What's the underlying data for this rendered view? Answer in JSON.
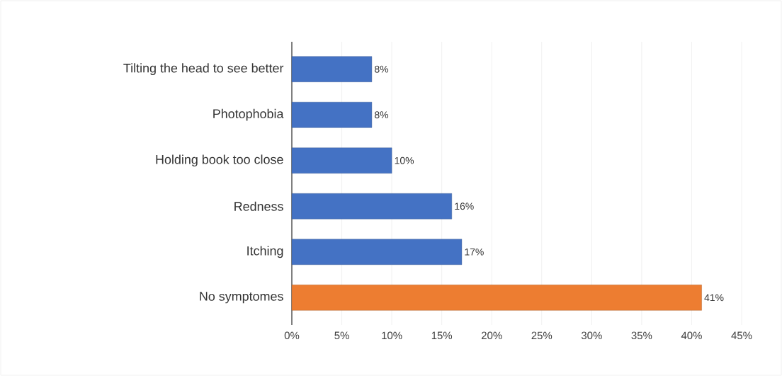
{
  "chart_data": {
    "type": "bar",
    "orientation": "horizontal",
    "categories": [
      "Tilting the head to see better",
      "Photophobia",
      "Holding book too close",
      "Redness",
      "Itching",
      "No symptomes"
    ],
    "values": [
      8,
      8,
      10,
      16,
      17,
      41
    ],
    "colors": [
      "#4472c4",
      "#4472c4",
      "#4472c4",
      "#4472c4",
      "#4472c4",
      "#ed7d31"
    ],
    "value_labels": [
      "8%",
      "8%",
      "10%",
      "16%",
      "17%",
      "41%"
    ],
    "xlim": [
      0,
      45
    ],
    "xticks": [
      {
        "value": 0,
        "label": "0%"
      },
      {
        "value": 5,
        "label": "5%"
      },
      {
        "value": 10,
        "label": "10%"
      },
      {
        "value": 15,
        "label": "15%"
      },
      {
        "value": 20,
        "label": "20%"
      },
      {
        "value": 25,
        "label": "25%"
      },
      {
        "value": 30,
        "label": "30%"
      },
      {
        "value": 35,
        "label": "35%"
      },
      {
        "value": 40,
        "label": "40%"
      },
      {
        "value": 45,
        "label": "45%"
      }
    ],
    "grid": "x"
  }
}
